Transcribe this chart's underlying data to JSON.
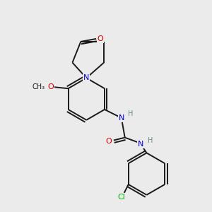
{
  "background_color": "#ebebeb",
  "atom_color_N": "#0000cc",
  "atom_color_O": "#cc0000",
  "atom_color_Cl": "#00aa00",
  "atom_color_H": "#6a8a8a",
  "bond_color": "#1a1a1a",
  "lw": 1.4,
  "r_hex": 0.3,
  "xlim": [
    0.0,
    3.0
  ],
  "ylim": [
    0.0,
    3.0
  ]
}
